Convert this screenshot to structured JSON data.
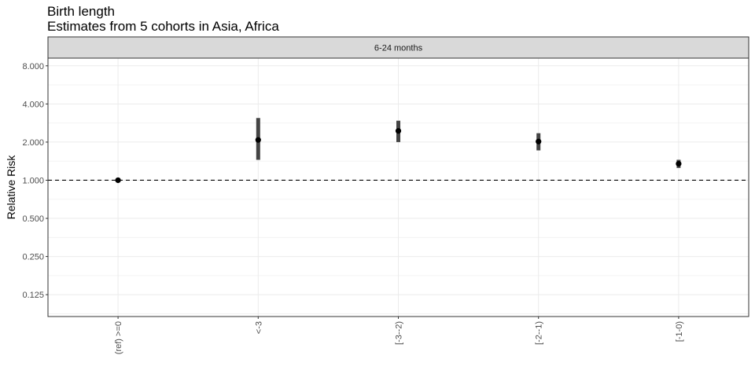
{
  "chart_data": {
    "type": "scatter",
    "title": "Birth length",
    "subtitle": "Estimates from 5 cohorts in Asia, Africa",
    "facet_label": "6-24 months",
    "ylabel": "Relative Risk",
    "xlabel": "",
    "y_scale": "log2",
    "y_ticks": [
      0.125,
      0.25,
      0.5,
      1,
      2,
      4,
      8
    ],
    "y_tick_labels": [
      "0.125",
      "0.250",
      "0.500",
      "1.000",
      "2.000",
      "4.000",
      "8.000"
    ],
    "ylim": [
      0.084,
      9.2
    ],
    "reference_line": 1,
    "grid": true,
    "categories": [
      "(ref) >=0",
      "<-3",
      "[-3--2)",
      "[-2--1)",
      "[-1-0)"
    ],
    "points": [
      {
        "x": "(ref) >=0",
        "y": 1.0,
        "ci_lower": 1.0,
        "ci_upper": 1.0
      },
      {
        "x": "<-3",
        "y": 2.08,
        "ci_lower": 1.45,
        "ci_upper": 3.1
      },
      {
        "x": "[-3--2)",
        "y": 2.45,
        "ci_lower": 2.0,
        "ci_upper": 2.95
      },
      {
        "x": "[-2--1)",
        "y": 2.02,
        "ci_lower": 1.72,
        "ci_upper": 2.35
      },
      {
        "x": "[-1-0)",
        "y": 1.35,
        "ci_lower": 1.25,
        "ci_upper": 1.45
      }
    ]
  }
}
